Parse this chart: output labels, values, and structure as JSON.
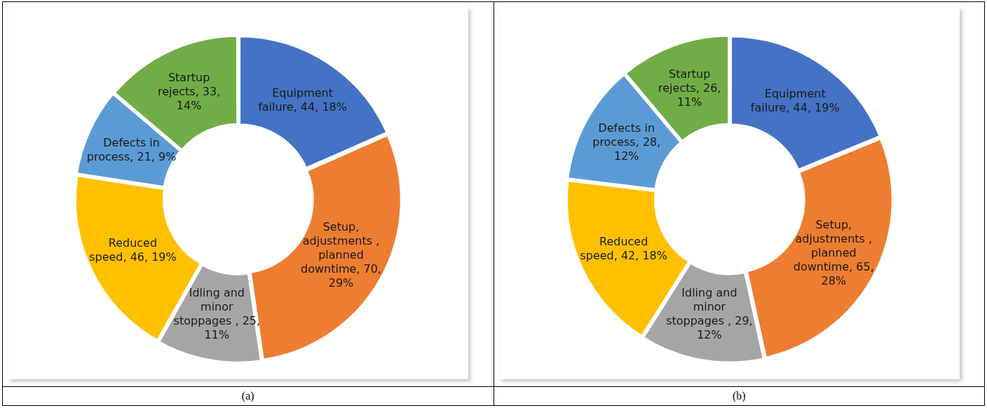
{
  "chart_data": [
    {
      "type": "donut",
      "categories": [
        "Equipment failure",
        "Setup, adjustments , planned downtime",
        "Idling and minor stoppages ",
        "Reduced speed",
        "Defects in process",
        "Startup rejects"
      ],
      "values": [
        44,
        70,
        25,
        46,
        21,
        33
      ],
      "value_labels": [
        "44, 18%",
        "70, 29%",
        "25, 11%",
        "46, 19%",
        "21, 9%",
        "33, 14%"
      ],
      "colors": [
        "#4472c4",
        "#ed7d31",
        "#a5a5a5",
        "#ffc000",
        "#5b9bd5",
        "#70ad47"
      ],
      "legend": false,
      "annotations": [
        "(a)"
      ]
    },
    {
      "type": "donut",
      "categories": [
        "Equipment failure",
        "Setup, adjustments , planned downtime",
        "Idling and minor stoppages ",
        "Reduced speed",
        "Defects in process",
        "Startup rejects"
      ],
      "values": [
        44,
        65,
        29,
        42,
        28,
        26
      ],
      "value_labels": [
        "44, 19%",
        "65, 28%",
        "29, 12%",
        "42, 18%",
        "28, 12%",
        "26, 11%"
      ],
      "colors": [
        "#4472c4",
        "#ed7d31",
        "#a5a5a5",
        "#ffc000",
        "#5b9bd5",
        "#70ad47"
      ],
      "legend": false,
      "annotations": [
        "(b)"
      ]
    }
  ]
}
